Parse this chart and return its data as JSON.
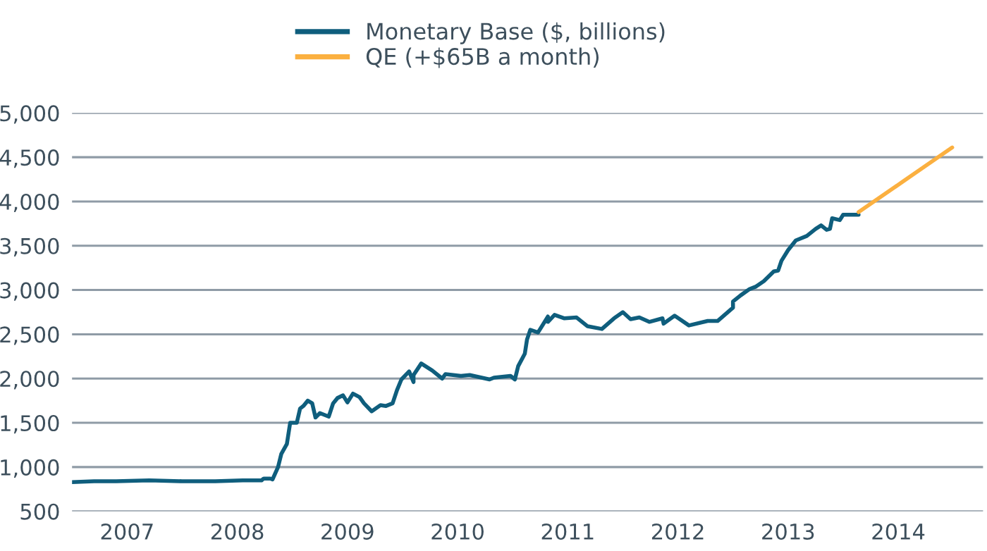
{
  "chart_data": {
    "type": "line",
    "xlim": [
      2006.5,
      2014.77
    ],
    "xticks": [
      2007,
      2008,
      2009,
      2010,
      2011,
      2012,
      2013,
      2014
    ],
    "ylim": [
      500,
      5000
    ],
    "yticks": [
      {
        "value": 500,
        "label": "500"
      },
      {
        "value": 1000,
        "label": "1,000"
      },
      {
        "value": 1500,
        "label": "1,500"
      },
      {
        "value": 2000,
        "label": "2,000"
      },
      {
        "value": 2500,
        "label": "2,500"
      },
      {
        "value": 3000,
        "label": "3,000"
      },
      {
        "value": 3500,
        "label": "3,500"
      },
      {
        "value": 4000,
        "label": "4,000"
      },
      {
        "value": 4500,
        "label": "4,500"
      },
      {
        "value": 5000,
        "label": "5,000"
      }
    ],
    "grid": "y",
    "legend": "top",
    "series": [
      {
        "name": "Monetary Base ($, billions)",
        "color": "#0f5e7d",
        "x": [
          2006.5,
          2006.7,
          2006.9,
          2007.2,
          2007.5,
          2007.8,
          2008.05,
          2008.22,
          2008.24,
          2008.3,
          2008.32,
          2008.37,
          2008.4,
          2008.45,
          2008.48,
          2008.54,
          2008.57,
          2008.6,
          2008.64,
          2008.68,
          2008.71,
          2008.75,
          2008.83,
          2008.87,
          2008.91,
          2008.96,
          2009.0,
          2009.05,
          2009.11,
          2009.15,
          2009.22,
          2009.3,
          2009.35,
          2009.41,
          2009.45,
          2009.49,
          2009.56,
          2009.6,
          2009.6,
          2009.67,
          2009.77,
          2009.86,
          2009.89,
          2010.03,
          2010.11,
          2010.29,
          2010.33,
          2010.48,
          2010.52,
          2010.55,
          2010.61,
          2010.63,
          2010.66,
          2010.73,
          2010.82,
          2010.82,
          2010.88,
          2010.97,
          2011.08,
          2011.18,
          2011.31,
          2011.42,
          2011.5,
          2011.57,
          2011.65,
          2011.74,
          2011.86,
          2011.87,
          2011.97,
          2012.1,
          2012.27,
          2012.36,
          2012.5,
          2012.5,
          2012.57,
          2012.65,
          2012.71,
          2012.78,
          2012.87,
          2012.91,
          2012.94,
          2013.0,
          2013.07,
          2013.17,
          2013.25,
          2013.3,
          2013.35,
          2013.38,
          2013.4,
          2013.47,
          2013.5,
          2013.57,
          2013.6,
          2013.64
        ],
        "values": [
          830,
          840,
          840,
          850,
          840,
          840,
          850,
          850,
          870,
          870,
          860,
          1000,
          1150,
          1260,
          1500,
          1500,
          1660,
          1690,
          1750,
          1720,
          1560,
          1610,
          1570,
          1720,
          1780,
          1810,
          1730,
          1830,
          1790,
          1720,
          1630,
          1700,
          1690,
          1720,
          1870,
          1990,
          2080,
          1960,
          2040,
          2170,
          2090,
          2000,
          2050,
          2030,
          2040,
          1990,
          2010,
          2030,
          1990,
          2140,
          2280,
          2440,
          2550,
          2520,
          2700,
          2640,
          2720,
          2680,
          2690,
          2590,
          2560,
          2680,
          2750,
          2670,
          2690,
          2640,
          2680,
          2620,
          2710,
          2600,
          2650,
          2650,
          2800,
          2870,
          2940,
          3010,
          3040,
          3100,
          3210,
          3220,
          3330,
          3450,
          3560,
          3610,
          3690,
          3730,
          3680,
          3690,
          3810,
          3790,
          3850,
          3850,
          3850,
          3850
        ]
      },
      {
        "name": "QE (+$65B a month)",
        "color": "#fbb040",
        "x": [
          2013.64,
          2014.49
        ],
        "values": [
          3880,
          4610
        ]
      }
    ]
  }
}
